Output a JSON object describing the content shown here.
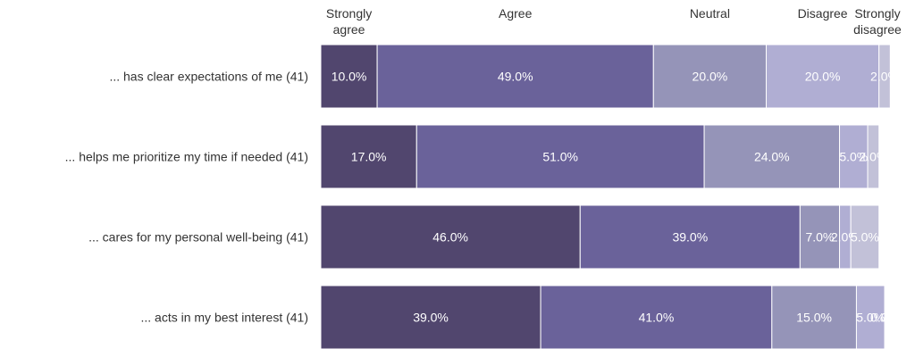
{
  "chart_data": {
    "type": "bar",
    "orientation": "horizontal-stacked-100",
    "categories": [
      "... has clear expectations of me (41)",
      "... helps me prioritize my time if needed (41)",
      "... cares for my personal well-being (41)",
      "... acts in my best interest (41)"
    ],
    "column_headers": [
      [
        "Strongly",
        "agree"
      ],
      [
        "Agree"
      ],
      [
        "Neutral"
      ],
      [
        "Disagree"
      ],
      [
        "Strongly",
        "disagree"
      ]
    ],
    "series": [
      {
        "name": "Strongly agree",
        "color": "#51466e",
        "values": [
          10,
          17,
          46,
          39
        ],
        "labels": [
          "10.0%",
          "17.0%",
          "46.0%",
          "39.0%"
        ]
      },
      {
        "name": "Agree",
        "color": "#6a629a",
        "values": [
          49,
          51,
          39,
          41
        ],
        "labels": [
          "49.0%",
          "51.0%",
          "39.0%",
          "41.0%"
        ]
      },
      {
        "name": "Neutral",
        "color": "#9594b8",
        "values": [
          20,
          24,
          7,
          15
        ],
        "labels": [
          "20.0%",
          "24.0%",
          "7.0%",
          "15.0%"
        ]
      },
      {
        "name": "Disagree",
        "color": "#b0aed3",
        "values": [
          20,
          5,
          2,
          5
        ],
        "labels": [
          "20.0%",
          "5.0%",
          "2.0%",
          "5.0%"
        ]
      },
      {
        "name": "Strongly disagree",
        "color": "#c2c1d8",
        "values": [
          2,
          2,
          5,
          0
        ],
        "labels": [
          "2.0%",
          "2.0%",
          "5.0%",
          "0.0%"
        ]
      }
    ],
    "xlim": [
      0,
      100
    ],
    "grid": false,
    "legend": "top (column headers)"
  }
}
